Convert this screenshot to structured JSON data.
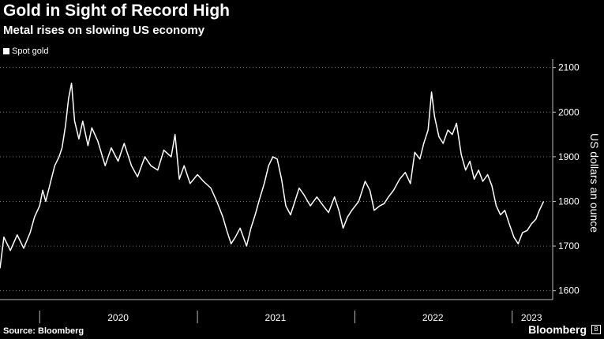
{
  "header": {
    "title": "Gold in Sight of Record High",
    "subtitle": "Metal rises on slowing US economy"
  },
  "footer": {
    "source": "Source: Bloomberg",
    "brand": "Bloomberg",
    "brand_mark": "B"
  },
  "colors": {
    "background": "#000000",
    "line": "#ffffff",
    "grid": "#777777",
    "axis": "#bbbbbb"
  },
  "chart_data": {
    "type": "line",
    "title": "Gold in Sight of Record High",
    "subtitle": "Metal rises on slowing US economy",
    "ylabel": "US dollars an ounce",
    "xlabel": "",
    "y_axis_side": "right",
    "ylim": [
      1580,
      2110
    ],
    "yticks": [
      1600,
      1700,
      1800,
      1900,
      2000,
      2100
    ],
    "xlim": [
      "2019-10-01",
      "2023-04-05"
    ],
    "x_year_labels": [
      {
        "label": "2020",
        "date": "2020-07-01"
      },
      {
        "label": "2021",
        "date": "2021-07-01"
      },
      {
        "label": "2022",
        "date": "2022-07-01"
      },
      {
        "label": "2023",
        "date": "2023-02-15"
      }
    ],
    "x_year_boundaries": [
      "2020-01-01",
      "2021-01-01",
      "2022-01-01",
      "2023-01-01"
    ],
    "grid": "horizontal dotted",
    "legend_position": "top-left",
    "series": [
      {
        "name": "Spot gold",
        "color": "#ffffff",
        "points": [
          [
            "2019-10-01",
            1650
          ],
          [
            "2019-10-10",
            1720
          ],
          [
            "2019-10-25",
            1690
          ],
          [
            "2019-11-10",
            1725
          ],
          [
            "2019-11-25",
            1695
          ],
          [
            "2019-12-10",
            1730
          ],
          [
            "2019-12-20",
            1765
          ],
          [
            "2020-01-01",
            1790
          ],
          [
            "2020-01-08",
            1825
          ],
          [
            "2020-01-15",
            1800
          ],
          [
            "2020-01-28",
            1850
          ],
          [
            "2020-02-05",
            1880
          ],
          [
            "2020-02-15",
            1900
          ],
          [
            "2020-02-22",
            1920
          ],
          [
            "2020-03-01",
            1970
          ],
          [
            "2020-03-08",
            2030
          ],
          [
            "2020-03-15",
            2065
          ],
          [
            "2020-03-22",
            1980
          ],
          [
            "2020-04-01",
            1940
          ],
          [
            "2020-04-10",
            1980
          ],
          [
            "2020-04-22",
            1925
          ],
          [
            "2020-05-01",
            1965
          ],
          [
            "2020-05-15",
            1935
          ],
          [
            "2020-06-01",
            1880
          ],
          [
            "2020-06-15",
            1920
          ],
          [
            "2020-07-01",
            1890
          ],
          [
            "2020-07-15",
            1930
          ],
          [
            "2020-08-01",
            1880
          ],
          [
            "2020-08-15",
            1855
          ],
          [
            "2020-09-01",
            1900
          ],
          [
            "2020-09-15",
            1880
          ],
          [
            "2020-10-01",
            1870
          ],
          [
            "2020-10-15",
            1915
          ],
          [
            "2020-11-01",
            1900
          ],
          [
            "2020-11-10",
            1950
          ],
          [
            "2020-11-20",
            1850
          ],
          [
            "2020-12-01",
            1880
          ],
          [
            "2020-12-15",
            1840
          ],
          [
            "2021-01-01",
            1860
          ],
          [
            "2021-01-15",
            1845
          ],
          [
            "2021-02-01",
            1830
          ],
          [
            "2021-02-15",
            1800
          ],
          [
            "2021-03-01",
            1765
          ],
          [
            "2021-03-10",
            1735
          ],
          [
            "2021-03-20",
            1705
          ],
          [
            "2021-03-30",
            1720
          ],
          [
            "2021-04-10",
            1740
          ],
          [
            "2021-04-25",
            1700
          ],
          [
            "2021-05-05",
            1740
          ],
          [
            "2021-05-15",
            1770
          ],
          [
            "2021-05-25",
            1805
          ],
          [
            "2021-06-05",
            1840
          ],
          [
            "2021-06-15",
            1880
          ],
          [
            "2021-06-25",
            1900
          ],
          [
            "2021-07-05",
            1895
          ],
          [
            "2021-07-15",
            1850
          ],
          [
            "2021-07-25",
            1790
          ],
          [
            "2021-08-05",
            1770
          ],
          [
            "2021-08-15",
            1800
          ],
          [
            "2021-08-25",
            1830
          ],
          [
            "2021-09-05",
            1815
          ],
          [
            "2021-09-20",
            1790
          ],
          [
            "2021-10-05",
            1810
          ],
          [
            "2021-10-20",
            1790
          ],
          [
            "2021-11-01",
            1775
          ],
          [
            "2021-11-15",
            1810
          ],
          [
            "2021-11-25",
            1780
          ],
          [
            "2021-12-05",
            1740
          ],
          [
            "2021-12-15",
            1765
          ],
          [
            "2021-12-25",
            1780
          ],
          [
            "2022-01-10",
            1800
          ],
          [
            "2022-01-25",
            1845
          ],
          [
            "2022-02-05",
            1825
          ],
          [
            "2022-02-15",
            1780
          ],
          [
            "2022-02-28",
            1790
          ],
          [
            "2022-03-10",
            1795
          ],
          [
            "2022-03-20",
            1810
          ],
          [
            "2022-04-01",
            1825
          ],
          [
            "2022-04-15",
            1850
          ],
          [
            "2022-04-28",
            1865
          ],
          [
            "2022-05-10",
            1840
          ],
          [
            "2022-05-20",
            1910
          ],
          [
            "2022-06-01",
            1895
          ],
          [
            "2022-06-10",
            1930
          ],
          [
            "2022-06-20",
            1960
          ],
          [
            "2022-06-28",
            2045
          ],
          [
            "2022-07-05",
            1990
          ],
          [
            "2022-07-15",
            1945
          ],
          [
            "2022-07-25",
            1930
          ],
          [
            "2022-08-05",
            1960
          ],
          [
            "2022-08-15",
            1950
          ],
          [
            "2022-08-25",
            1975
          ],
          [
            "2022-09-05",
            1905
          ],
          [
            "2022-09-15",
            1870
          ],
          [
            "2022-09-25",
            1890
          ],
          [
            "2022-10-05",
            1850
          ],
          [
            "2022-10-15",
            1870
          ],
          [
            "2022-10-25",
            1845
          ],
          [
            "2022-11-05",
            1860
          ],
          [
            "2022-11-15",
            1835
          ],
          [
            "2022-11-25",
            1790
          ],
          [
            "2022-12-05",
            1770
          ],
          [
            "2022-12-15",
            1780
          ],
          [
            "2022-12-25",
            1750
          ],
          [
            "2023-01-05",
            1720
          ],
          [
            "2023-01-15",
            1705
          ],
          [
            "2023-01-25",
            1730
          ],
          [
            "2023-02-05",
            1735
          ],
          [
            "2023-02-15",
            1750
          ],
          [
            "2023-02-25",
            1760
          ],
          [
            "2023-03-05",
            1780
          ],
          [
            "2023-03-15",
            1800
          ]
        ]
      }
    ]
  }
}
